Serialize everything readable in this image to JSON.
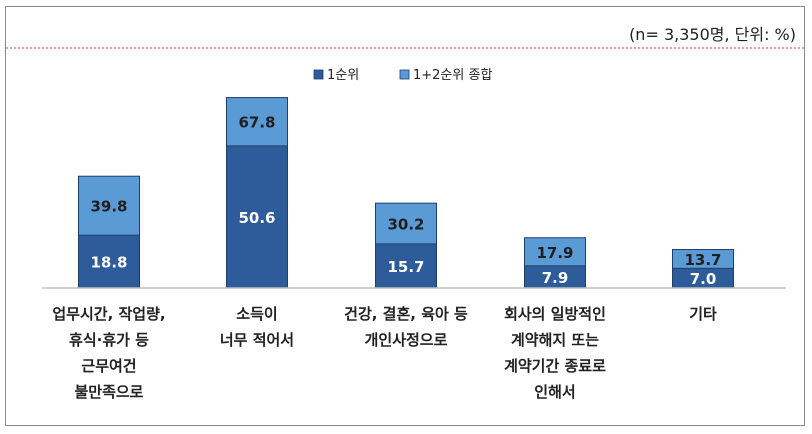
{
  "note": "(n= 3,350명, 단위: %)",
  "chart_data": {
    "type": "bar",
    "categories": [
      [
        "업무시간, 작업량,",
        "휴식·휴가 등",
        "근무여건",
        "불만족으로"
      ],
      [
        "소득이",
        "너무 적어서"
      ],
      [
        "건강, 결혼, 육아 등",
        "개인사정으로"
      ],
      [
        "회사의 일방적인",
        "계약해지 또는",
        "계약기간 종료로",
        "인해서"
      ],
      [
        "기타"
      ]
    ],
    "series": [
      {
        "name": "1순위",
        "values": [
          18.8,
          50.6,
          15.7,
          7.9,
          7.0
        ],
        "labels": [
          "18.8",
          "50.6",
          "15.7",
          "7.9",
          "7.0"
        ]
      },
      {
        "name": "1+2순위 종합",
        "values": [
          39.8,
          67.8,
          30.2,
          17.9,
          13.7
        ],
        "labels": [
          "39.8",
          "67.8",
          "30.2",
          "17.9",
          "13.7"
        ]
      }
    ],
    "ylim": [
      0,
      68
    ],
    "colors": {
      "first": "#2e5c9a",
      "combined": "#5b9bd5",
      "label_light": "#ffffff",
      "label_dark": "#1f1f1f",
      "baseline": "#bfbfbf",
      "dash": "#e53935"
    },
    "legend_position": "top-center"
  }
}
